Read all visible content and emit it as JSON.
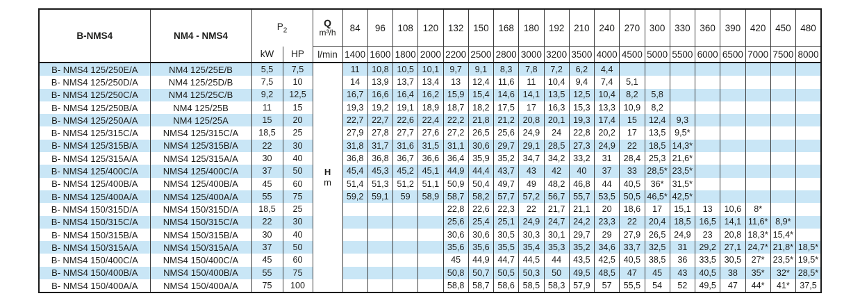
{
  "table": {
    "col1_header": "B-NMS4",
    "col2_header": "NM4 - NMS4",
    "p2_label": "P",
    "p2_sub": "2",
    "kw_label": "kW",
    "hp_label": "HP",
    "q_label": "Q",
    "q_unit": "m³/h",
    "lmin_label": "l/min",
    "h_label": "H",
    "h_unit": "m",
    "flow_m3h": [
      "84",
      "96",
      "108",
      "120",
      "132",
      "150",
      "168",
      "180",
      "192",
      "210",
      "240",
      "270",
      "300",
      "330",
      "360",
      "390",
      "420",
      "450",
      "480"
    ],
    "flow_lmin": [
      "1400",
      "1600",
      "1800",
      "2000",
      "2200",
      "2500",
      "2800",
      "3000",
      "3200",
      "3500",
      "4000",
      "4500",
      "5000",
      "5500",
      "6000",
      "6500",
      "7000",
      "7500",
      "8000"
    ],
    "rows": [
      {
        "model_b": "B- NMS4 125/250E/A",
        "model_nm": "NM4 125/25E/B",
        "kw": "5,5",
        "hp": "7,5",
        "values": [
          "11",
          "10,8",
          "10,5",
          "10,1",
          "9,7",
          "9,1",
          "8,3",
          "7,8",
          "7,2",
          "6,2",
          "4,4",
          "",
          "",
          "",
          "",
          "",
          "",
          "",
          ""
        ]
      },
      {
        "model_b": "B- NMS4 125/250D/A",
        "model_nm": "NM4 125/25D/B",
        "kw": "7,5",
        "hp": "10",
        "values": [
          "14",
          "13,9",
          "13,7",
          "13,4",
          "13",
          "12,4",
          "11,6",
          "11",
          "10,4",
          "9,4",
          "7,4",
          "5,1",
          "",
          "",
          "",
          "",
          "",
          "",
          ""
        ]
      },
      {
        "model_b": "B- NMS4 125/250C/A",
        "model_nm": "NM4 125/25C/B",
        "kw": "9,2",
        "hp": "12,5",
        "values": [
          "16,7",
          "16,6",
          "16,4",
          "16,2",
          "15,9",
          "15,4",
          "14,6",
          "14,1",
          "13,5",
          "12,5",
          "10,4",
          "8,2",
          "5,8",
          "",
          "",
          "",
          "",
          "",
          ""
        ]
      },
      {
        "model_b": "B- NMS4 125/250B/A",
        "model_nm": "NM4 125/25B",
        "kw": "11",
        "hp": "15",
        "values": [
          "19,3",
          "19,2",
          "19,1",
          "18,9",
          "18,7",
          "18,2",
          "17,5",
          "17",
          "16,3",
          "15,3",
          "13,3",
          "10,9",
          "8,2",
          "",
          "",
          "",
          "",
          "",
          ""
        ]
      },
      {
        "model_b": "B- NMS4 125/250A/A",
        "model_nm": "NM4 125/25A",
        "kw": "15",
        "hp": "20",
        "values": [
          "22,7",
          "22,7",
          "22,6",
          "22,4",
          "22,2",
          "21,8",
          "21,2",
          "20,8",
          "20,1",
          "19,3",
          "17,4",
          "15",
          "12,4",
          "9,3",
          "",
          "",
          "",
          "",
          ""
        ]
      },
      {
        "model_b": "B- NMS4 125/315C/A",
        "model_nm": "NMS4 125/315C/A",
        "kw": "18,5",
        "hp": "25",
        "values": [
          "27,9",
          "27,8",
          "27,7",
          "27,6",
          "27,2",
          "26,5",
          "25,6",
          "24,9",
          "24",
          "22,8",
          "20,2",
          "17",
          "13,5",
          "9,5*",
          "",
          "",
          "",
          "",
          ""
        ]
      },
      {
        "model_b": "B- NMS4 125/315B/A",
        "model_nm": "NMS4 125/315B/A",
        "kw": "22",
        "hp": "30",
        "values": [
          "31,8",
          "31,7",
          "31,6",
          "31,5",
          "31,1",
          "30,6",
          "29,7",
          "29,1",
          "28,5",
          "27,3",
          "24,9",
          "22",
          "18,5",
          "14,3*",
          "",
          "",
          "",
          "",
          ""
        ]
      },
      {
        "model_b": "B- NMS4 125/315A/A",
        "model_nm": "NMS4 125/315A/A",
        "kw": "30",
        "hp": "40",
        "values": [
          "36,8",
          "36,8",
          "36,7",
          "36,6",
          "36,4",
          "35,9",
          "35,2",
          "34,7",
          "34,2",
          "33,2",
          "31",
          "28,4",
          "25,3",
          "21,6*",
          "",
          "",
          "",
          "",
          ""
        ]
      },
      {
        "model_b": "B- NMS4 125/400C/A",
        "model_nm": "NMS4 125/400C/A",
        "kw": "37",
        "hp": "50",
        "values": [
          "45,4",
          "45,3",
          "45,2",
          "45,1",
          "44,9",
          "44,4",
          "43,7",
          "43",
          "42",
          "40",
          "37",
          "33",
          "28,5*",
          "23,5*",
          "",
          "",
          "",
          "",
          ""
        ]
      },
      {
        "model_b": "B- NMS4 125/400B/A",
        "model_nm": "NMS4 125/400B/A",
        "kw": "45",
        "hp": "60",
        "values": [
          "51,4",
          "51,3",
          "51,2",
          "51,1",
          "50,9",
          "50,4",
          "49,7",
          "49",
          "48,2",
          "46,8",
          "44",
          "40,5",
          "36*",
          "31,5*",
          "",
          "",
          "",
          "",
          ""
        ]
      },
      {
        "model_b": "B- NMS4 125/400A/A",
        "model_nm": "NMS4 125/400A/A",
        "kw": "55",
        "hp": "75",
        "values": [
          "59,2",
          "59,1",
          "59",
          "58,9",
          "58,7",
          "58,2",
          "57,7",
          "57,2",
          "56,7",
          "55,7",
          "53,5",
          "50,5",
          "46,5*",
          "42,5*",
          "",
          "",
          "",
          "",
          ""
        ]
      },
      {
        "model_b": "B- NMS4 150/315D/A",
        "model_nm": "NMS4 150/315D/A",
        "kw": "18,5",
        "hp": "25",
        "values": [
          "",
          "",
          "",
          "",
          "22,8",
          "22,6",
          "22,3",
          "22",
          "21,7",
          "21,1",
          "20",
          "18,6",
          "17",
          "15,1",
          "13",
          "10,6",
          "8*",
          "",
          ""
        ]
      },
      {
        "model_b": "B- NMS4 150/315C/A",
        "model_nm": "NMS4 150/315C/A",
        "kw": "22",
        "hp": "30",
        "values": [
          "",
          "",
          "",
          "",
          "25,6",
          "25,4",
          "25,1",
          "24,9",
          "24,7",
          "24,2",
          "23,3",
          "22",
          "20,4",
          "18,5",
          "16,5",
          "14,1",
          "11,6*",
          "8,9*",
          ""
        ]
      },
      {
        "model_b": "B- NMS4 150/315B/A",
        "model_nm": "NMS4 150/315B/A",
        "kw": "30",
        "hp": "40",
        "values": [
          "",
          "",
          "",
          "",
          "30,6",
          "30,6",
          "30,5",
          "30,3",
          "30,1",
          "29,7",
          "29",
          "27,9",
          "26,5",
          "24,9",
          "23",
          "20,8",
          "18,3*",
          "15,4*",
          ""
        ]
      },
      {
        "model_b": "B- NMS4 150/315A/A",
        "model_nm": "NMS4 150/315A/A",
        "kw": "37",
        "hp": "50",
        "values": [
          "",
          "",
          "",
          "",
          "35,6",
          "35,6",
          "35,5",
          "35,4",
          "35,3",
          "35,2",
          "34,6",
          "33,7",
          "32,5",
          "31",
          "29,2",
          "27,1",
          "24,7*",
          "21,8*",
          "18,5*"
        ]
      },
      {
        "model_b": "B- NMS4 150/400C/A",
        "model_nm": "NMS4 150/400C/A",
        "kw": "45",
        "hp": "60",
        "values": [
          "",
          "",
          "",
          "",
          "45",
          "44,9",
          "44,7",
          "44,5",
          "44",
          "43,5",
          "42,5",
          "40,5",
          "38,5",
          "36",
          "33,5",
          "30,5",
          "27*",
          "23,5*",
          "19,5*"
        ]
      },
      {
        "model_b": "B- NMS4 150/400B/A",
        "model_nm": "NMS4 150/400B/A",
        "kw": "55",
        "hp": "75",
        "values": [
          "",
          "",
          "",
          "",
          "50,8",
          "50,7",
          "50,5",
          "50,3",
          "50",
          "49,5",
          "48,5",
          "47",
          "45",
          "43",
          "40,5",
          "38",
          "35*",
          "32*",
          "28,5*"
        ]
      },
      {
        "model_b": "B- NMS4 150/400A/A",
        "model_nm": "NMS4 150/400A/A",
        "kw": "75",
        "hp": "100",
        "values": [
          "",
          "",
          "",
          "",
          "58,8",
          "58,7",
          "58,6",
          "58,5",
          "58,3",
          "57,9",
          "57",
          "55,5",
          "54",
          "52",
          "49,5",
          "47",
          "44*",
          "41*",
          "37,5"
        ]
      }
    ]
  },
  "colors": {
    "stripe_blue": "#c9e6f6",
    "grid_line": "#3c3c3c",
    "outer_border": "#1a1a1a",
    "text": "#1d1d1b"
  }
}
